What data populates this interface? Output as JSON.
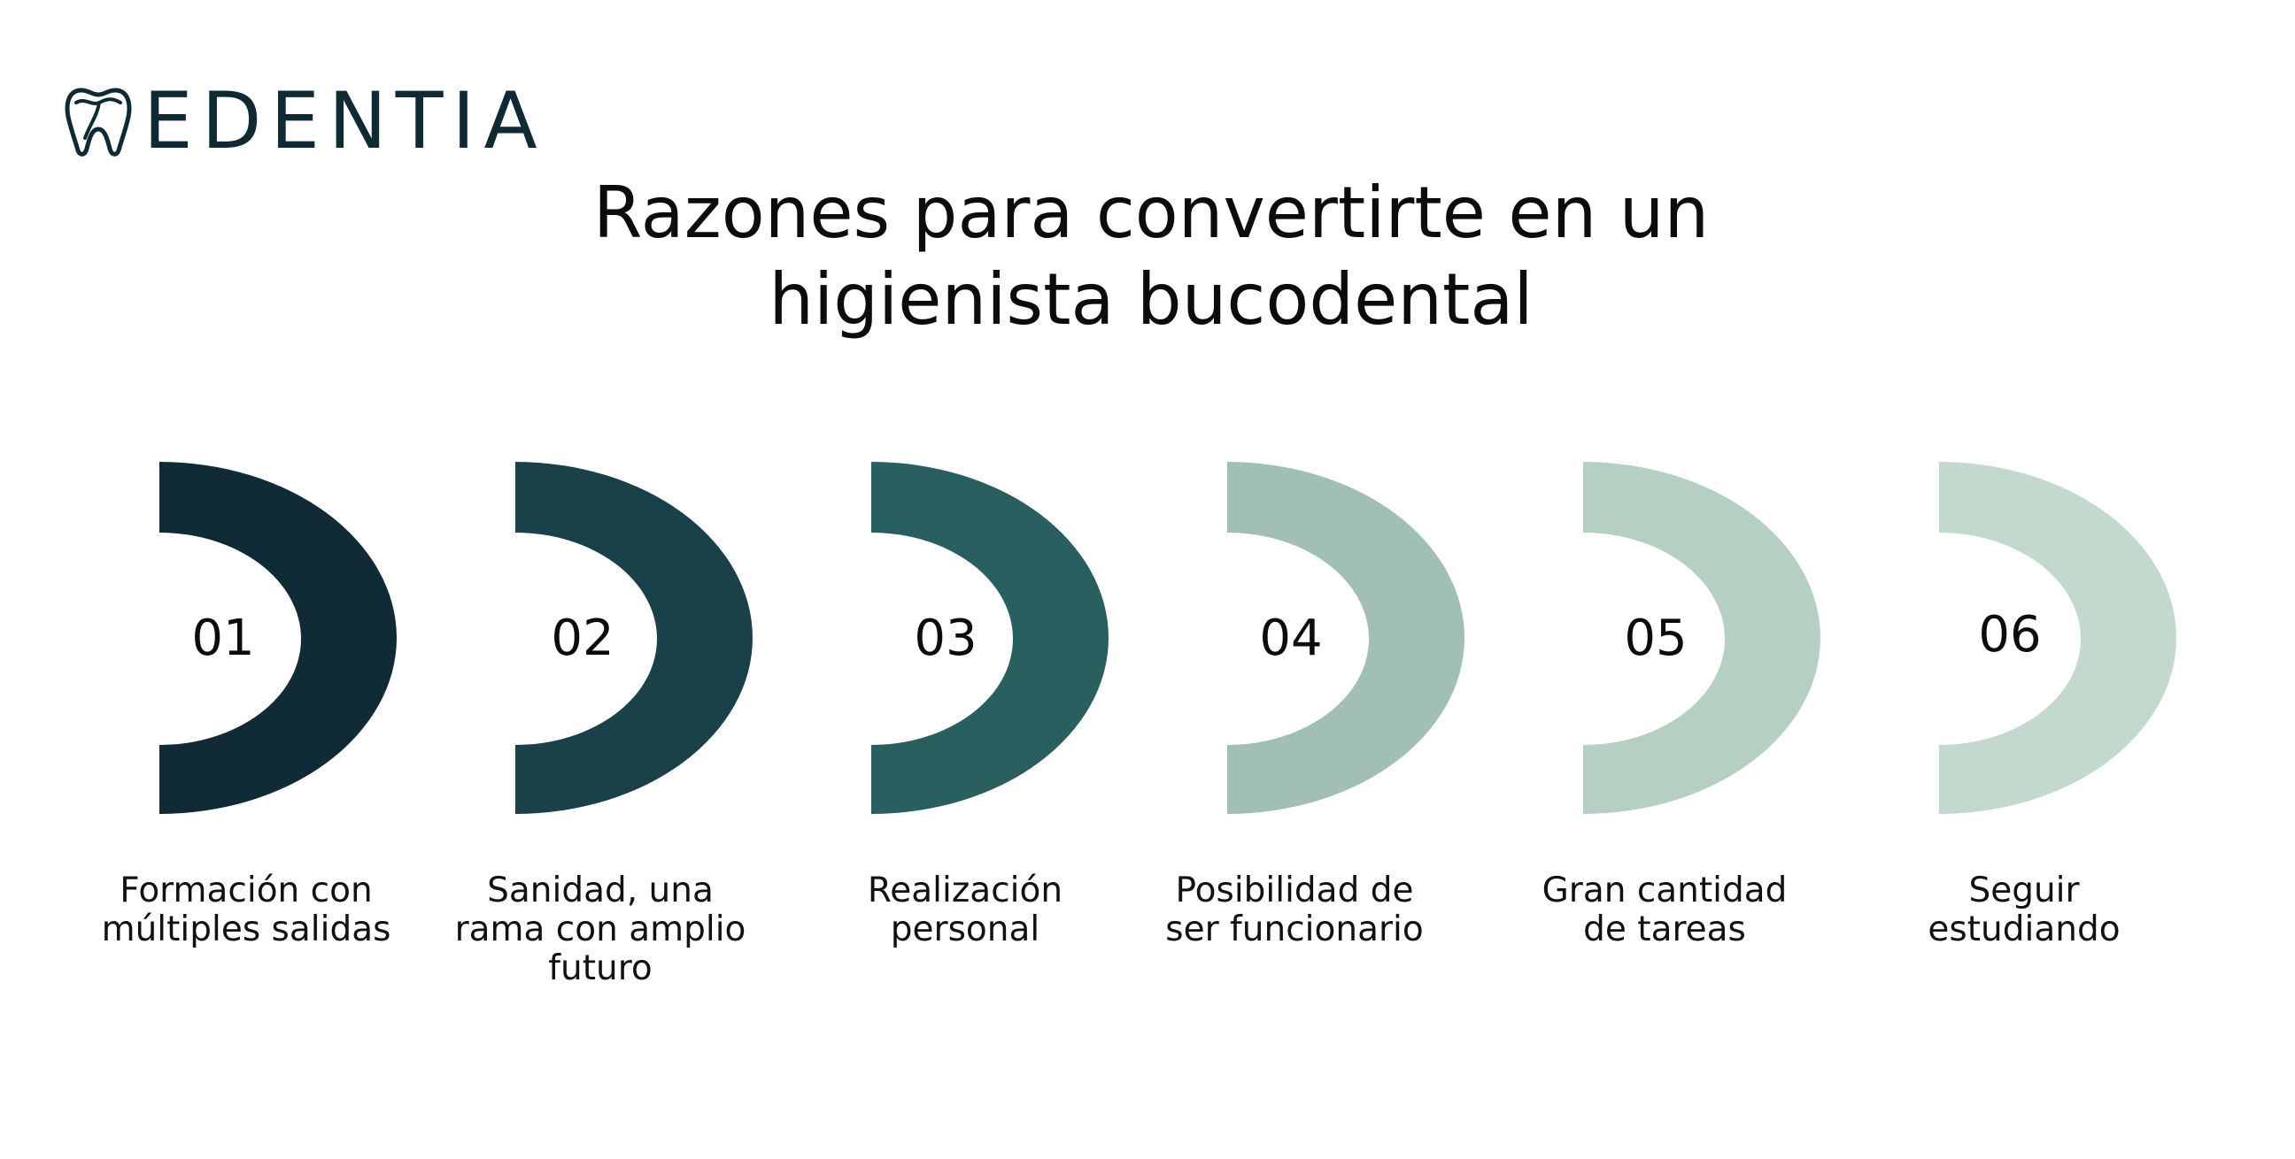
{
  "brand": {
    "name": "EDENTIA",
    "icon": "tooth-icon",
    "color": "#0f2a33"
  },
  "title": {
    "line1": "Razones para convertirte en un",
    "line2": "higienista bucodental"
  },
  "steps": [
    {
      "number": "01",
      "caption": [
        "Formación con",
        "múltiples salidas"
      ],
      "color": "#102b35"
    },
    {
      "number": "02",
      "caption": [
        "Sanidad, una",
        "rama con amplio",
        "futuro"
      ],
      "color": "#1a4149"
    },
    {
      "number": "03",
      "caption": [
        "Realización",
        "personal"
      ],
      "color": "#2a5f5f"
    },
    {
      "number": "04",
      "caption": [
        "Posibilidad de",
        "ser funcionario"
      ],
      "color": "#a1bfb2"
    },
    {
      "number": "05",
      "caption": [
        "Gran cantidad",
        "de tareas"
      ],
      "color": "#b6cfc3"
    },
    {
      "number": "06",
      "caption": [
        "Seguir",
        "estudiando"
      ],
      "color": "#c3d9ce"
    }
  ]
}
